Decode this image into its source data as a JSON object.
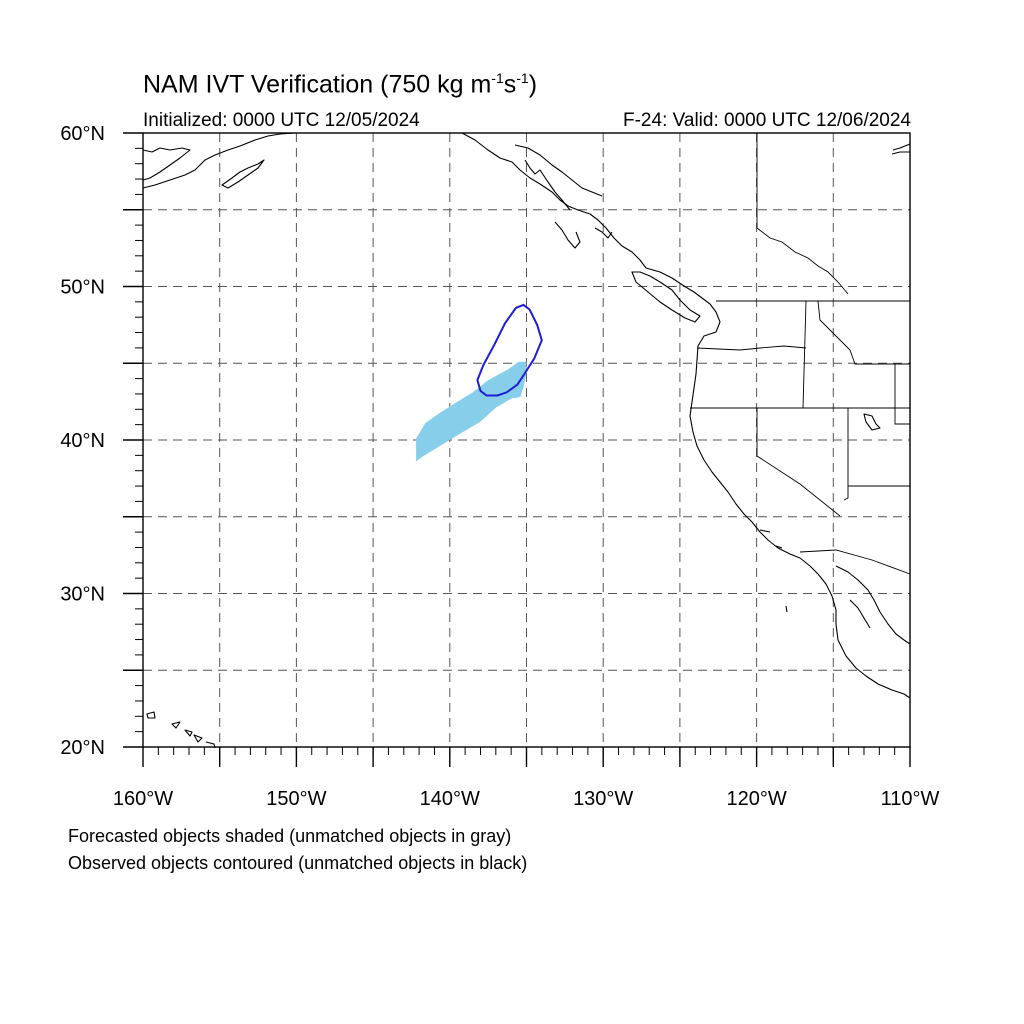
{
  "title": {
    "main": "NAM IVT Verification (750 kg m",
    "sup1": "-1",
    "mid": "s",
    "sup2": "-1",
    "end": ")"
  },
  "init_text": "Initialized: 0000 UTC 12/05/2024",
  "valid_text": "F-24: Valid: 0000 UTC 12/06/2024",
  "axes": {
    "lon_range": [
      -160,
      -110
    ],
    "lat_range": [
      20,
      60
    ],
    "x_ticks": [
      {
        "value": -160,
        "label": "160°W"
      },
      {
        "value": -150,
        "label": "150°W"
      },
      {
        "value": -140,
        "label": "140°W"
      },
      {
        "value": -130,
        "label": "130°W"
      },
      {
        "value": -120,
        "label": "120°W"
      },
      {
        "value": -110,
        "label": "110°W"
      }
    ],
    "y_ticks": [
      {
        "value": 20,
        "label": "20°N"
      },
      {
        "value": 30,
        "label": "30°N"
      },
      {
        "value": 40,
        "label": "40°N"
      },
      {
        "value": 50,
        "label": "50°N"
      },
      {
        "value": 60,
        "label": "60°N"
      }
    ],
    "grid": true,
    "grid_style": "dashed"
  },
  "forecast_object": {
    "color": "#87ceeb",
    "points": [
      [
        -142.2,
        38.6
      ],
      [
        -141.8,
        38.9
      ],
      [
        -141.0,
        39.4
      ],
      [
        -140.0,
        40.0
      ],
      [
        -139.0,
        40.6
      ],
      [
        -138.0,
        41.2
      ],
      [
        -137.0,
        42.1
      ],
      [
        -136.0,
        42.7
      ],
      [
        -135.4,
        42.8
      ],
      [
        -135.2,
        43.4
      ],
      [
        -135.0,
        44.4
      ],
      [
        -135.0,
        45.1
      ],
      [
        -135.5,
        45.1
      ],
      [
        -136.2,
        44.6
      ],
      [
        -137.5,
        43.9
      ],
      [
        -138.5,
        43.1
      ],
      [
        -139.5,
        42.5
      ],
      [
        -140.6,
        41.8
      ],
      [
        -141.6,
        41.1
      ],
      [
        -142.2,
        40.1
      ]
    ]
  },
  "observed_object": {
    "color": "#1e1ed2",
    "points": [
      [
        -138.0,
        43.2
      ],
      [
        -137.6,
        42.9
      ],
      [
        -136.9,
        42.9
      ],
      [
        -136.3,
        43.1
      ],
      [
        -135.6,
        43.6
      ],
      [
        -135.2,
        44.2
      ],
      [
        -134.5,
        45.3
      ],
      [
        -134.0,
        46.5
      ],
      [
        -134.3,
        47.5
      ],
      [
        -134.8,
        48.5
      ],
      [
        -135.2,
        48.8
      ],
      [
        -135.7,
        48.6
      ],
      [
        -136.4,
        47.6
      ],
      [
        -137.1,
        46.2
      ],
      [
        -137.8,
        44.9
      ],
      [
        -138.2,
        43.9
      ]
    ]
  },
  "captions": [
    "Forecasted objects shaded (unmatched objects in gray)",
    "Observed objects contoured (unmatched objects in black)"
  ]
}
